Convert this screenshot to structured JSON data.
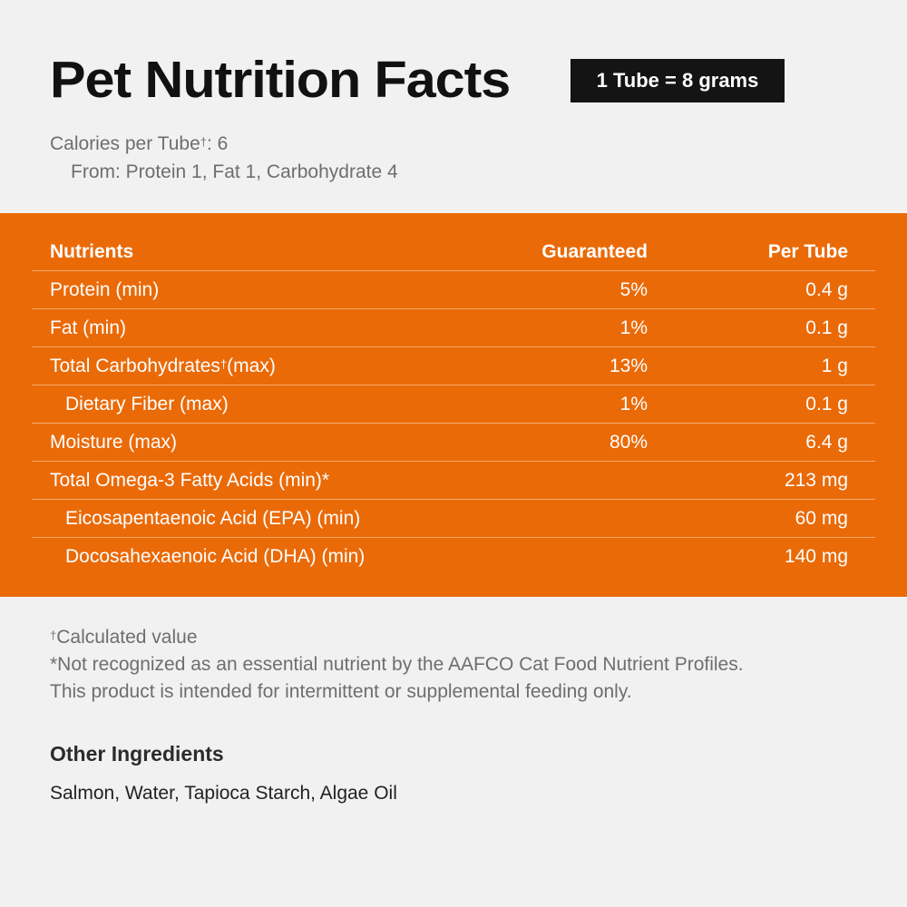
{
  "header": {
    "title": "Pet Nutrition Facts",
    "serving_badge": "1 Tube = 8 grams"
  },
  "calories": {
    "label": "Calories per Tube",
    "dagger": "†",
    "value": ": 6",
    "from": "From: Protein 1, Fat 1, Carbohydrate 4"
  },
  "table": {
    "headers": {
      "nutrients": "Nutrients",
      "guaranteed": "Guaranteed",
      "per_tube": "Per Tube"
    },
    "rows": [
      {
        "name": "Protein (min)",
        "guaranteed": "5%",
        "per_tube": "0.4 g"
      },
      {
        "name": "Fat (min)",
        "guaranteed": "1%",
        "per_tube": "0.1 g"
      },
      {
        "name": "Total Carbohydrates",
        "dagger": "†",
        "suffix": "(max)",
        "guaranteed": "13%",
        "per_tube": "1 g"
      },
      {
        "name": "Dietary Fiber (max)",
        "guaranteed": "1%",
        "per_tube": "0.1 g"
      },
      {
        "name": "Moisture (max)",
        "guaranteed": "80%",
        "per_tube": "6.4 g"
      },
      {
        "name": "Total Omega-3 Fatty Acids (min)*",
        "guaranteed": "",
        "per_tube": "213 mg"
      },
      {
        "name": "Eicosapentaenoic Acid (EPA) (min)",
        "guaranteed": "",
        "per_tube": "60 mg"
      },
      {
        "name": "Docosahexaenoic Acid (DHA) (min)",
        "guaranteed": "",
        "per_tube": "140 mg"
      }
    ]
  },
  "notes": {
    "dagger": "†",
    "calculated": "Calculated value",
    "asterisk_note": "*Not recognized as an essential nutrient by the AAFCO Cat Food Nutrient Profiles.",
    "feeding_note": "This product is intended for intermittent or supplemental feeding only."
  },
  "ingredients": {
    "title": "Other Ingredients",
    "text": "Salmon, Water, Tapioca Starch, Algae Oil"
  },
  "colors": {
    "background": "#f1f1f1",
    "panel": "#ea6a08",
    "badge": "#141414",
    "title": "#111111",
    "muted_text": "#6e6e6e"
  }
}
